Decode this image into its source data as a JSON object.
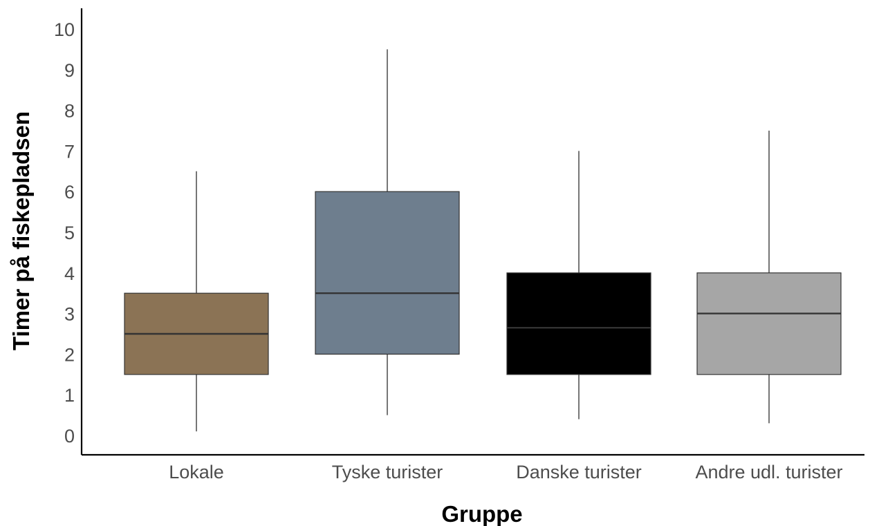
{
  "chart_data": {
    "type": "boxplot",
    "title": "",
    "xlabel": "Gruppe",
    "ylabel": "Timer på fiskepladsen",
    "ylim": [
      -0.45,
      10.5
    ],
    "yticks": [
      "0",
      "1",
      "2",
      "3",
      "4",
      "5",
      "6",
      "7",
      "8",
      "9",
      "10"
    ],
    "grid": false,
    "legend": "none",
    "categories": [
      "Lokale",
      "Tyske turister",
      "Danske turister",
      "Andre udl. turister"
    ],
    "boxes": [
      {
        "category": "Lokale",
        "min": 0.1,
        "q1": 1.5,
        "median": 2.5,
        "q3": 3.5,
        "max": 6.5,
        "fill": "#8b7355",
        "median_color": "#333333"
      },
      {
        "category": "Tyske turister",
        "min": 0.5,
        "q1": 2.0,
        "median": 3.5,
        "q3": 6.0,
        "max": 9.5,
        "fill": "#6e7e8e",
        "median_color": "#333333"
      },
      {
        "category": "Danske turister",
        "min": 0.4,
        "q1": 1.5,
        "median": 2.65,
        "q3": 4.0,
        "max": 7.0,
        "fill": "#000000",
        "median_color": "#333333"
      },
      {
        "category": "Andre udl. turister",
        "min": 0.3,
        "q1": 1.5,
        "median": 3.0,
        "q3": 4.0,
        "max": 7.5,
        "fill": "#a6a6a6",
        "median_color": "#333333"
      }
    ]
  }
}
